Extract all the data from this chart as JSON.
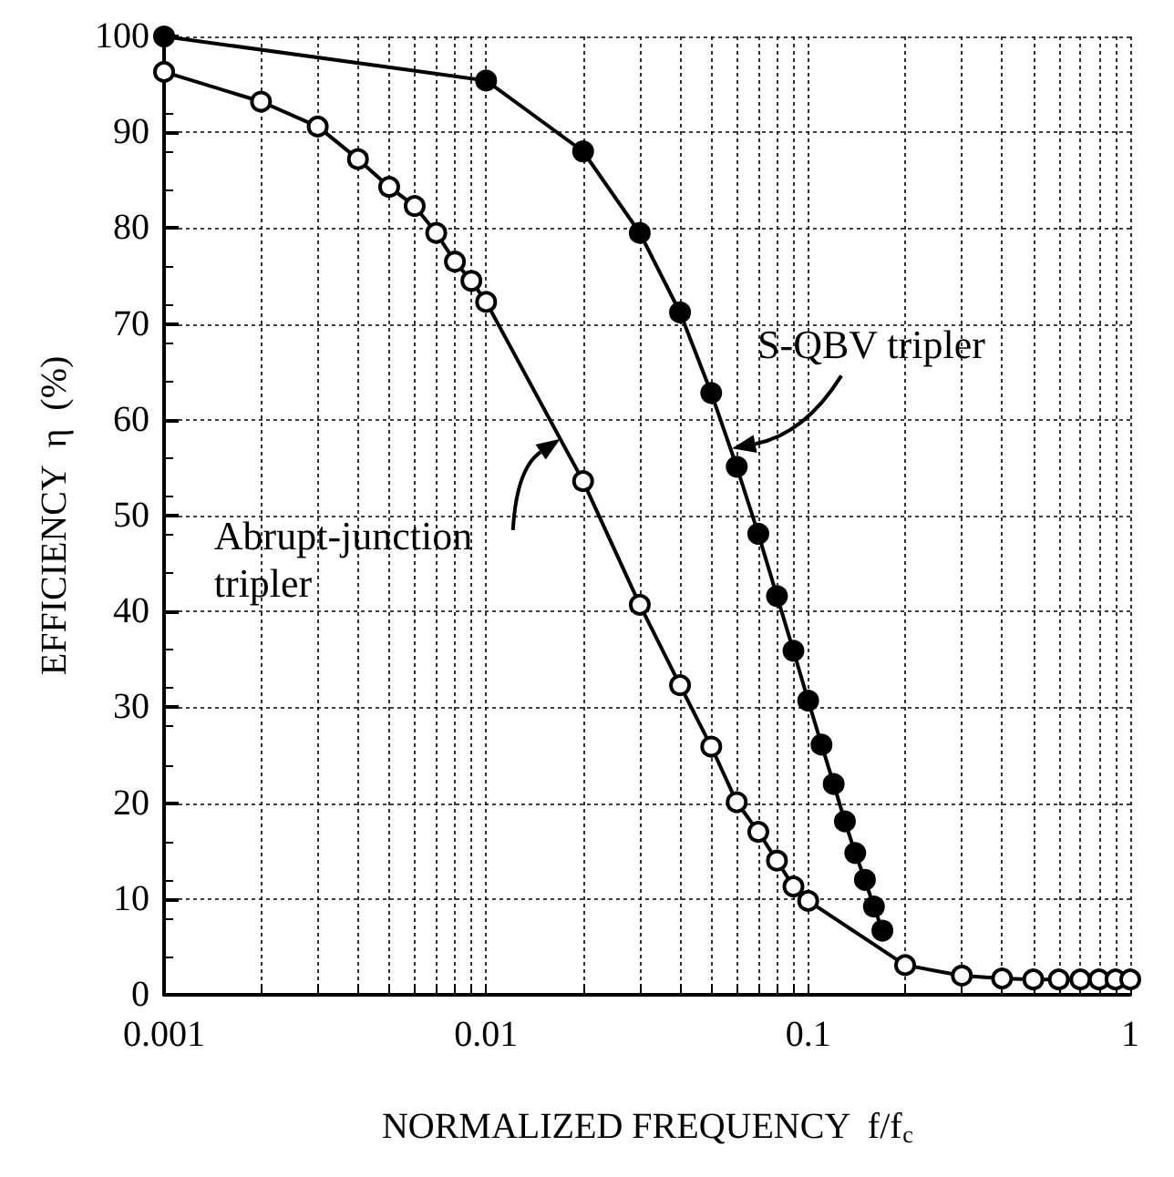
{
  "chart_data": {
    "type": "line",
    "xlabel": "NORMALIZED FREQUENCY  f/f$_{c}$",
    "ylabel": "EFFICIENCY  η  (%)",
    "log": "x",
    "xlim": [
      0.001,
      1
    ],
    "ylim": [
      0,
      100
    ],
    "xticks": [
      0.001,
      {
        "value": 0.002,
        "label": null
      },
      {
        "value": 0.003,
        "label": null
      },
      {
        "value": 0.004,
        "label": null
      },
      {
        "value": 0.005,
        "label": null
      },
      {
        "value": 0.006,
        "label": null
      },
      {
        "value": 0.007,
        "label": null
      },
      {
        "value": 0.008,
        "label": null
      },
      {
        "value": 0.009,
        "label": null
      },
      0.01,
      {
        "value": 0.02,
        "label": null
      },
      {
        "value": 0.03,
        "label": null
      },
      {
        "value": 0.04,
        "label": null
      },
      {
        "value": 0.05,
        "label": null
      },
      {
        "value": 0.06,
        "label": null
      },
      {
        "value": 0.07,
        "label": null
      },
      {
        "value": 0.08,
        "label": null
      },
      {
        "value": 0.09,
        "label": null
      },
      0.1,
      {
        "value": 0.2,
        "label": null
      },
      {
        "value": 0.3,
        "label": null
      },
      {
        "value": 0.4,
        "label": null
      },
      {
        "value": 0.5,
        "label": null
      },
      {
        "value": 0.6,
        "label": null
      },
      {
        "value": 0.7,
        "label": null
      },
      {
        "value": 0.8,
        "label": null
      },
      {
        "value": 0.9,
        "label": null
      },
      1
    ],
    "yticks": [
      0,
      10,
      20,
      30,
      40,
      50,
      60,
      70,
      80,
      90,
      100
    ],
    "grid": true,
    "marker": "circle",
    "series": [
      {
        "color": "#000000",
        "x": [
          0.001,
          0.002,
          0.003,
          0.004,
          0.005,
          0.006,
          0.007,
          0.008,
          0.009,
          0.01,
          0.02,
          0.03,
          0.04,
          0.05,
          0.06,
          0.07,
          0.08,
          0.09,
          0.1,
          0.2,
          0.3,
          0.4,
          0.5,
          0.6,
          0.7,
          0.8,
          0.9,
          1
        ],
        "values": [
          96.3,
          93.2,
          90.6,
          87.2,
          84.3,
          82.3,
          79.5,
          76.5,
          74.5,
          72.3,
          53.6,
          40.7,
          32.3,
          25.9,
          20.1,
          17.0,
          14.0,
          11.3,
          9.8,
          3.1,
          2.0,
          1.7,
          1.6,
          1.6,
          1.6,
          1.6,
          1.6,
          1.6
        ]
      },
      {
        "color": "#000000",
        "x": [
          0.001,
          0.01,
          0.02,
          0.03,
          0.04,
          0.05,
          0.06,
          0.07,
          0.08,
          0.09,
          0.1,
          0.11,
          0.12,
          0.13,
          0.14,
          0.15,
          0.16,
          0.17
        ],
        "values": [
          100,
          95.4,
          88,
          79.5,
          71.2,
          62.8,
          55.1,
          48.1,
          41.6,
          35.9,
          30.7,
          26.1,
          22.0,
          18.1,
          14.8,
          12.0,
          9.2,
          6.7
        ]
      }
    ],
    "annotations": [
      {
        "text": "S-QBV tripler",
        "x": 0.058,
        "y": 57
      },
      {
        "text": "Abrupt-junction\ntripler",
        "x": 0.017,
        "y": 58
      }
    ]
  }
}
